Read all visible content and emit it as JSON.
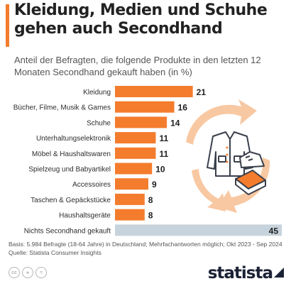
{
  "header": {
    "title": "Kleidung, Medien und Schuhe gehen auch Secondhand",
    "subtitle": "Anteil der Befragten, die folgende Produkte in den letzten 12 Monaten Secondhand gekauft haben (in %)"
  },
  "colors": {
    "accent": "#f47c2d",
    "bar": "#f47c2d",
    "bar_highlight": "#c7d3dc",
    "arrows": "#f8c8a2",
    "text": "#2d2d2d"
  },
  "footer": {
    "basis": "Basis: 5.984 Befragte (18-64 Jahre) in Deutschland; Mehrfachantworten möglich; Okt 2023 - Sep 2024",
    "source": "Quelle: Statista Consumer Insights",
    "brand": "statista",
    "icons": [
      "creative-commons-icon",
      "attribution-icon",
      "no-derivatives-icon"
    ]
  },
  "illustration": {
    "icons": [
      "recycle-arrows-icon",
      "jacket-icon",
      "shoe-icon",
      "books-icon"
    ]
  },
  "chart_data": {
    "type": "bar",
    "orientation": "horizontal",
    "categories": [
      "Kleidung",
      "Bücher, Filme, Musik & Games",
      "Schuhe",
      "Unterhaltungselektronik",
      "Möbel & Haushaltswaren",
      "Spielzeug und Babyartikel",
      "Accessoires",
      "Taschen & Gepäckstücke",
      "Haushaltsgeräte",
      "Nichts Secondhand gekauft"
    ],
    "values": [
      21,
      16,
      14,
      11,
      11,
      10,
      9,
      8,
      8,
      45
    ],
    "highlight_index": 9,
    "xlim": [
      0,
      45
    ],
    "grid": false,
    "legend": "none"
  }
}
